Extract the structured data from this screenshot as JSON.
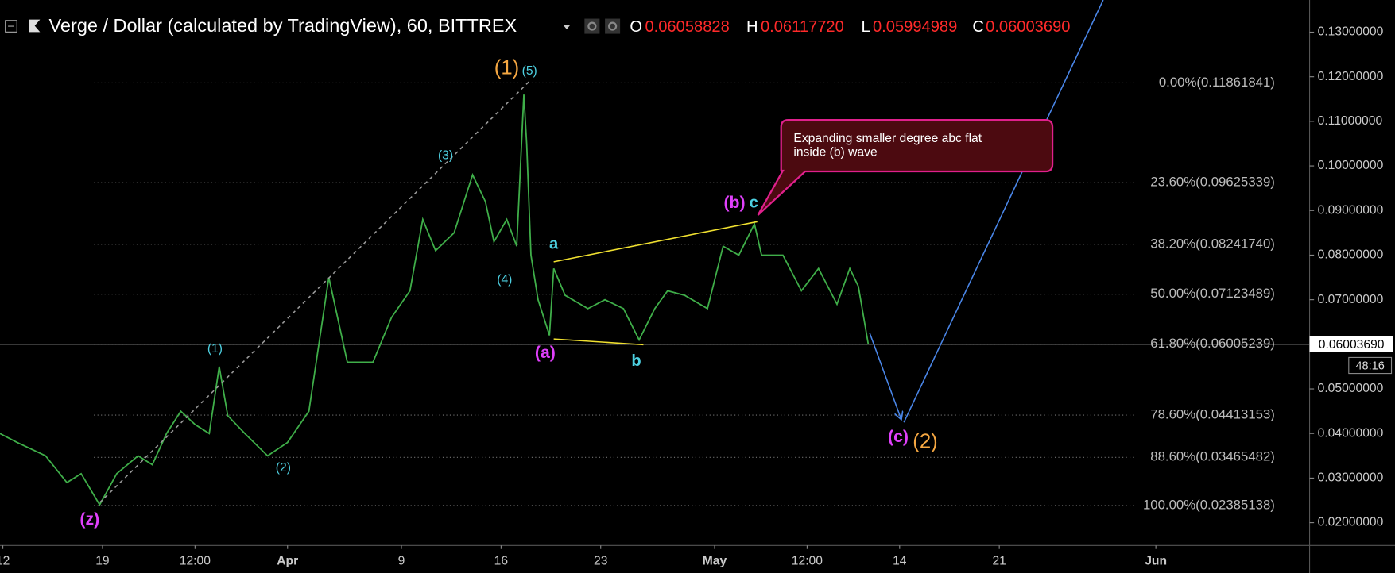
{
  "chart_data": {
    "type": "line",
    "title": "Verge / Dollar (calculated by TradingView), 60, BITTREX",
    "ohlc": {
      "labels": [
        "O",
        "H",
        "L",
        "C"
      ],
      "value_labels": [
        "0.06058828",
        "0.06117720",
        "0.05994989",
        "0.06003690"
      ]
    },
    "xlim": [
      11.8,
      103.8
    ],
    "ylim": [
      0.0149,
      0.1372
    ],
    "xticks": [
      {
        "value": 12,
        "label": "12"
      },
      {
        "value": 19,
        "label": "19"
      },
      {
        "value": 25.5,
        "label": "12:00"
      },
      {
        "value": 32,
        "label": "Apr"
      },
      {
        "value": 40,
        "label": "9"
      },
      {
        "value": 47,
        "label": "16"
      },
      {
        "value": 54,
        "label": "23"
      },
      {
        "value": 62,
        "label": "May"
      },
      {
        "value": 68.5,
        "label": "12:00"
      },
      {
        "value": 75,
        "label": "14"
      },
      {
        "value": 82,
        "label": "21"
      },
      {
        "value": 93,
        "label": "Jun"
      }
    ],
    "yticks": [
      {
        "value": 0.02,
        "label": "0.02000000"
      },
      {
        "value": 0.03,
        "label": "0.03000000"
      },
      {
        "value": 0.04,
        "label": "0.04000000"
      },
      {
        "value": 0.05,
        "label": "0.05000000"
      },
      {
        "value": 0.06,
        "label": "0.06000000"
      },
      {
        "value": 0.07,
        "label": "0.07000000"
      },
      {
        "value": 0.08,
        "label": "0.08000000"
      },
      {
        "value": 0.09,
        "label": "0.09000000"
      },
      {
        "value": 0.1,
        "label": "0.10000000"
      },
      {
        "value": 0.11,
        "label": "0.11000000"
      },
      {
        "value": 0.12,
        "label": "0.12000000"
      },
      {
        "value": 0.13,
        "label": "0.13000000"
      }
    ],
    "series": [
      {
        "color": "#3fae49",
        "x": [
          11.8,
          13,
          15,
          16.5,
          17.5,
          18.8,
          20,
          21.5,
          22.5,
          23.5,
          24.5,
          25.5,
          26.5,
          27.2,
          27.8,
          29,
          30.6,
          32,
          33.5,
          34.9,
          36.2,
          38,
          39.3,
          40.6,
          41.5,
          42.4,
          43.7,
          45,
          45.9,
          46.5,
          47.4,
          48.1,
          48.6,
          48.8,
          49.1,
          49.6,
          50.4,
          50.7,
          51.5,
          53.1,
          54.3,
          55.6,
          56.7,
          57.8,
          58.7,
          59.9,
          61.5,
          62.6,
          63.7,
          64.8,
          65.3,
          66.8,
          68.1,
          69.3,
          70.6,
          71.5,
          72.1,
          72.8
        ],
        "values": [
          0.04,
          0.038,
          0.035,
          0.029,
          0.031,
          0.024,
          0.031,
          0.035,
          0.033,
          0.04,
          0.045,
          0.042,
          0.04,
          0.055,
          0.044,
          0.04,
          0.035,
          0.038,
          0.045,
          0.075,
          0.056,
          0.056,
          0.066,
          0.072,
          0.088,
          0.081,
          0.085,
          0.098,
          0.092,
          0.083,
          0.088,
          0.082,
          0.116,
          0.105,
          0.08,
          0.07,
          0.062,
          0.077,
          0.071,
          0.068,
          0.07,
          0.068,
          0.061,
          0.068,
          0.072,
          0.071,
          0.068,
          0.082,
          0.08,
          0.087,
          0.08,
          0.08,
          0.072,
          0.077,
          0.069,
          0.077,
          0.073,
          0.06
        ]
      }
    ],
    "fib_levels": [
      {
        "value": 0.11861841,
        "label": "0.00%(0.11861841)"
      },
      {
        "value": 0.09625339,
        "label": "23.60%(0.09625339)"
      },
      {
        "value": 0.0824174,
        "label": "38.20%(0.08241740)"
      },
      {
        "value": 0.07123489,
        "label": "50.00%(0.07123489)"
      },
      {
        "value": 0.06005239,
        "label": "61.80%(0.06005239)"
      },
      {
        "value": 0.04413153,
        "label": "78.60%(0.04413153)"
      },
      {
        "value": 0.03465482,
        "label": "88.60%(0.03465482)"
      },
      {
        "value": 0.02385138,
        "label": "100.00%(0.02385138)"
      }
    ],
    "fib_range": [
      18.4,
      91.5
    ],
    "last_price": {
      "value": 0.0600369,
      "label": "0.06003690"
    },
    "countdown": "48:16",
    "annotations": [
      {
        "text": "(1)",
        "x": 47.4,
        "y": 0.1218,
        "color": "#f5a742"
      },
      {
        "text": "(5)",
        "x": 49,
        "y": 0.1212,
        "color": "#4dd0e1"
      },
      {
        "text": "(3)",
        "x": 43.1,
        "y": 0.1023,
        "color": "#4dd0e1"
      },
      {
        "text": "(4)",
        "x": 47.25,
        "y": 0.0744,
        "color": "#4dd0e1"
      },
      {
        "text": "(1)",
        "x": 26.9,
        "y": 0.0589,
        "color": "#4dd0e1"
      },
      {
        "text": "(2)",
        "x": 31.7,
        "y": 0.0322,
        "color": "#4dd0e1"
      },
      {
        "text": "(z)",
        "x": 18.1,
        "y": 0.0206,
        "color": "#e040fb"
      },
      {
        "text": "a",
        "x": 50.7,
        "y": 0.0824,
        "color": "#4dd0e1"
      },
      {
        "text": "(a)",
        "x": 50.1,
        "y": 0.0579,
        "color": "#e040fb"
      },
      {
        "text": "b",
        "x": 56.5,
        "y": 0.0561,
        "color": "#4dd0e1"
      },
      {
        "text": "(b)",
        "x": 63.4,
        "y": 0.0916,
        "color": "#e040fb"
      },
      {
        "text": "c",
        "x": 64.75,
        "y": 0.0916,
        "color": "#4dd0e1"
      },
      {
        "text": "(c)",
        "x": 74.9,
        "y": 0.0391,
        "color": "#e040fb"
      },
      {
        "text": "(2)",
        "x": 76.8,
        "y": 0.038,
        "color": "#f5a742"
      }
    ],
    "drawings": [
      {
        "color": "#9a9a9a",
        "dash": true,
        "points": [
          [
            18.8,
            0.0245
          ],
          [
            49,
            0.119
          ]
        ]
      },
      {
        "color": "#f0e030",
        "dash": false,
        "points": [
          [
            50.7,
            0.0785
          ],
          [
            65,
            0.0875
          ]
        ]
      },
      {
        "color": "#f0e030",
        "dash": false,
        "points": [
          [
            50.7,
            0.0612
          ],
          [
            57,
            0.0599
          ]
        ]
      },
      {
        "color": "#4a86e8",
        "dash": false,
        "arrow": true,
        "points": [
          [
            72.9,
            0.0625
          ],
          [
            75.1,
            0.0433
          ]
        ]
      },
      {
        "color": "#4a86e8",
        "dash": false,
        "points": [
          [
            75.3,
            0.0425
          ],
          [
            89.3,
            0.1372
          ]
        ]
      }
    ],
    "callout": [
      "Expanding smaller degree abc flat",
      "inside (b) wave"
    ]
  }
}
